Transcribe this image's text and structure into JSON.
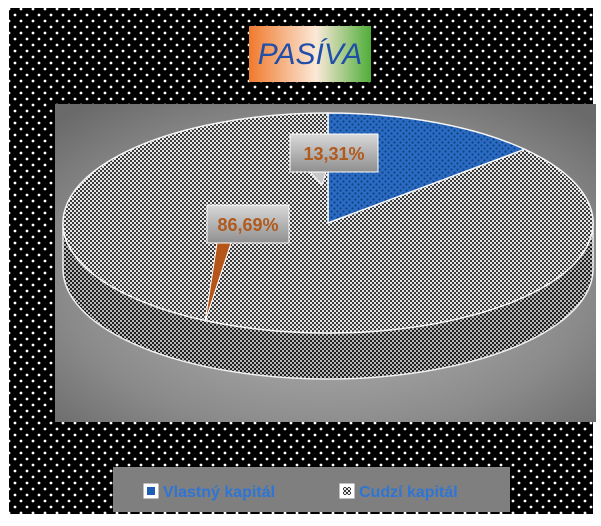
{
  "chart_data": {
    "type": "pie",
    "style": "3d",
    "title": "PASÍVA",
    "series": [
      {
        "name": "Vlastný kapitál",
        "value": 13.31,
        "label": "13,31%",
        "color": "#1f5fb3",
        "pattern": "dotted-blue"
      },
      {
        "name": "Cudzí kapitál",
        "value": 86.69,
        "label": "86,69%",
        "color": "#9a9a9a",
        "pattern": "checker-white"
      }
    ],
    "legend_position": "bottom",
    "data_label_color": "#b05a1e",
    "title_text_color": "#1f4fa8",
    "legend_text_color": "#2e75d6",
    "background": "black-with-white-dots"
  }
}
